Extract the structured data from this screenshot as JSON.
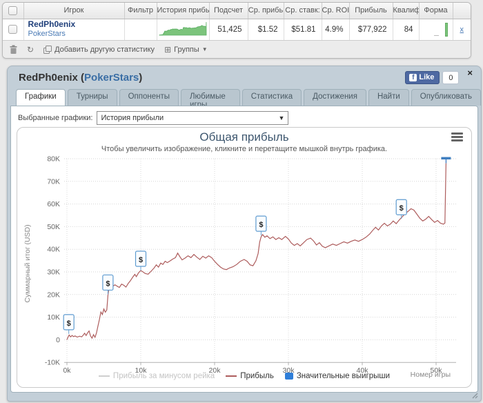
{
  "stats_widget": {
    "headers": [
      "Игрок",
      "Фильтр",
      "История прибь",
      "Подсчет",
      "Ср. прибь",
      "Ср. ставк:",
      "Ср. ROI",
      "Прибыль",
      "Квалиф",
      "Форма"
    ],
    "row": {
      "player": "RedPh0enix",
      "network": "PokerStars",
      "filter": "",
      "count": "51,425",
      "avg_profit": "$1.52",
      "avg_stake": "$51.81",
      "avg_roi": "4.9%",
      "profit": "$77,922",
      "qualif": "84",
      "remove": "x"
    },
    "toolbar": {
      "add_stat_label": "Добавить другую статистику",
      "groups_label": "Группы"
    },
    "sparkline_color": "#7cc47c"
  },
  "panel": {
    "title_player": "RedPh0enix",
    "title_network": "PokerStars",
    "like_label": "Like",
    "like_count": "0",
    "close_label": "x",
    "tabs": [
      "Графики",
      "Турниры",
      "Оппоненты",
      "Любимые игры",
      "Статистика",
      "Достижения",
      "Найти",
      "Опубликовать"
    ],
    "active_tab": 0,
    "graph_select": {
      "label": "Выбранные графики:",
      "value": "История прибыли"
    }
  },
  "chart_data": {
    "type": "line",
    "title": "Общая прибыль",
    "subtitle": "Чтобы увеличить изображение, кликните и перетащите мышкой внутрь графика.",
    "xlabel": "Номер игры",
    "ylabel": "Суммарный итог (USD)",
    "x_ticks": [
      "0k",
      "10k",
      "20k",
      "30k",
      "40k",
      "50k"
    ],
    "x_tick_values": [
      0,
      10,
      20,
      30,
      40,
      50
    ],
    "y_ticks": [
      "-10K",
      "0",
      "10K",
      "20K",
      "30K",
      "40K",
      "50K",
      "60K",
      "70K",
      "80K"
    ],
    "y_tick_values": [
      -10,
      0,
      10,
      20,
      30,
      40,
      50,
      60,
      70,
      80
    ],
    "ylim_k": [
      -10,
      80
    ],
    "grid": "dotted",
    "legend_position": "bottom",
    "series": [
      {
        "name": "Прибыль за минусом рейка",
        "color": "#cfcfcf",
        "text_color": "#c4c4c4",
        "visible": false,
        "swatch": "line",
        "points": []
      },
      {
        "name": "Прибыль",
        "color": "#ad5c5c",
        "text_color": "#333333",
        "visible": true,
        "swatch": "line",
        "points": [
          [
            0,
            0
          ],
          [
            0.15,
            1.2
          ],
          [
            0.3,
            2.1
          ],
          [
            0.5,
            1.3
          ],
          [
            0.7,
            1.9
          ],
          [
            0.9,
            1.4
          ],
          [
            1.1,
            1.7
          ],
          [
            1.4,
            1.2
          ],
          [
            1.7,
            1.6
          ],
          [
            2.0,
            1.3
          ],
          [
            2.2,
            2.0
          ],
          [
            2.4,
            2.9
          ],
          [
            2.6,
            1.9
          ],
          [
            2.8,
            3.1
          ],
          [
            3.0,
            3.9
          ],
          [
            3.2,
            1.7
          ],
          [
            3.4,
            0.7
          ],
          [
            3.6,
            2.3
          ],
          [
            3.8,
            1.1
          ],
          [
            4.0,
            3.0
          ],
          [
            4.2,
            6.0
          ],
          [
            4.4,
            9.0
          ],
          [
            4.6,
            12.3
          ],
          [
            4.8,
            11.2
          ],
          [
            5.0,
            13.6
          ],
          [
            5.2,
            12.2
          ],
          [
            5.4,
            13.2
          ],
          [
            5.55,
            19.5
          ],
          [
            5.7,
            23.3
          ],
          [
            5.9,
            24.1
          ],
          [
            6.2,
            23.6
          ],
          [
            6.5,
            24.3
          ],
          [
            6.8,
            23.7
          ],
          [
            7.1,
            23.1
          ],
          [
            7.4,
            24.6
          ],
          [
            7.7,
            24.1
          ],
          [
            8.0,
            23.3
          ],
          [
            8.3,
            24.9
          ],
          [
            8.6,
            26.1
          ],
          [
            8.9,
            27.6
          ],
          [
            9.2,
            28.9
          ],
          [
            9.4,
            27.9
          ],
          [
            9.7,
            29.6
          ],
          [
            10.0,
            30.6
          ],
          [
            10.3,
            30.0
          ],
          [
            10.6,
            29.3
          ],
          [
            11.0,
            29.0
          ],
          [
            11.4,
            30.3
          ],
          [
            11.8,
            31.7
          ],
          [
            12.1,
            33.1
          ],
          [
            12.4,
            32.1
          ],
          [
            12.7,
            33.9
          ],
          [
            13.0,
            33.3
          ],
          [
            13.3,
            34.7
          ],
          [
            13.6,
            34.1
          ],
          [
            14.0,
            34.9
          ],
          [
            14.3,
            35.6
          ],
          [
            14.7,
            36.3
          ],
          [
            15.0,
            38.3
          ],
          [
            15.3,
            36.7
          ],
          [
            15.6,
            35.3
          ],
          [
            16.0,
            36.1
          ],
          [
            16.4,
            37.1
          ],
          [
            16.8,
            36.3
          ],
          [
            17.2,
            37.7
          ],
          [
            17.6,
            36.5
          ],
          [
            18.0,
            35.5
          ],
          [
            18.4,
            36.9
          ],
          [
            18.8,
            36.1
          ],
          [
            19.2,
            37.1
          ],
          [
            19.6,
            36.3
          ],
          [
            20.0,
            34.7
          ],
          [
            20.4,
            33.3
          ],
          [
            20.8,
            32.1
          ],
          [
            21.2,
            31.3
          ],
          [
            21.6,
            31.0
          ],
          [
            22.0,
            31.7
          ],
          [
            22.5,
            32.3
          ],
          [
            23.0,
            33.3
          ],
          [
            23.5,
            34.7
          ],
          [
            24.0,
            35.5
          ],
          [
            24.4,
            34.7
          ],
          [
            24.8,
            33.1
          ],
          [
            25.2,
            32.7
          ],
          [
            25.6,
            34.9
          ],
          [
            25.9,
            38.1
          ],
          [
            26.1,
            43.1
          ],
          [
            26.3,
            45.5
          ],
          [
            26.5,
            46.5
          ],
          [
            26.8,
            45.3
          ],
          [
            27.1,
            45.9
          ],
          [
            27.5,
            44.7
          ],
          [
            27.9,
            45.5
          ],
          [
            28.3,
            44.3
          ],
          [
            28.7,
            45.1
          ],
          [
            29.1,
            44.3
          ],
          [
            29.6,
            45.7
          ],
          [
            30.0,
            44.5
          ],
          [
            30.4,
            42.7
          ],
          [
            30.8,
            41.7
          ],
          [
            31.2,
            42.5
          ],
          [
            31.6,
            41.5
          ],
          [
            32.0,
            42.7
          ],
          [
            32.5,
            44.3
          ],
          [
            33.0,
            44.9
          ],
          [
            33.4,
            43.7
          ],
          [
            33.8,
            41.9
          ],
          [
            34.2,
            42.9
          ],
          [
            34.6,
            41.3
          ],
          [
            35.0,
            40.7
          ],
          [
            35.5,
            41.5
          ],
          [
            36.0,
            42.3
          ],
          [
            36.5,
            41.7
          ],
          [
            37.0,
            42.5
          ],
          [
            37.5,
            43.3
          ],
          [
            38.0,
            42.7
          ],
          [
            38.5,
            43.5
          ],
          [
            39.0,
            44.1
          ],
          [
            39.5,
            43.5
          ],
          [
            40.0,
            44.3
          ],
          [
            40.5,
            45.3
          ],
          [
            41.0,
            46.7
          ],
          [
            41.4,
            48.3
          ],
          [
            41.8,
            49.7
          ],
          [
            42.2,
            48.5
          ],
          [
            42.6,
            50.3
          ],
          [
            43.0,
            51.5
          ],
          [
            43.4,
            50.3
          ],
          [
            43.8,
            51.1
          ],
          [
            44.2,
            52.5
          ],
          [
            44.6,
            51.3
          ],
          [
            45.0,
            52.9
          ],
          [
            45.4,
            54.3
          ],
          [
            45.8,
            55.7
          ],
          [
            46.2,
            56.7
          ],
          [
            46.6,
            57.9
          ],
          [
            47.0,
            57.3
          ],
          [
            47.4,
            55.5
          ],
          [
            47.8,
            53.7
          ],
          [
            48.2,
            52.5
          ],
          [
            48.6,
            53.3
          ],
          [
            49.0,
            54.5
          ],
          [
            49.4,
            53.1
          ],
          [
            49.8,
            51.9
          ],
          [
            50.2,
            52.7
          ],
          [
            50.6,
            51.5
          ],
          [
            51.0,
            51.1
          ],
          [
            51.2,
            51.6
          ],
          [
            51.35,
            78.0
          ]
        ]
      },
      {
        "name": "Значительные выигрыши",
        "color": "#2f7ed8",
        "text_color": "#333333",
        "visible": true,
        "swatch": "box",
        "dollar_markers": [
          [
            0.25,
            2.0
          ],
          [
            5.55,
            19.5
          ],
          [
            10.0,
            30.0
          ],
          [
            26.3,
            45.5
          ],
          [
            45.3,
            52.8
          ]
        ],
        "end_flag": [
          51.35,
          78.0
        ]
      }
    ]
  }
}
